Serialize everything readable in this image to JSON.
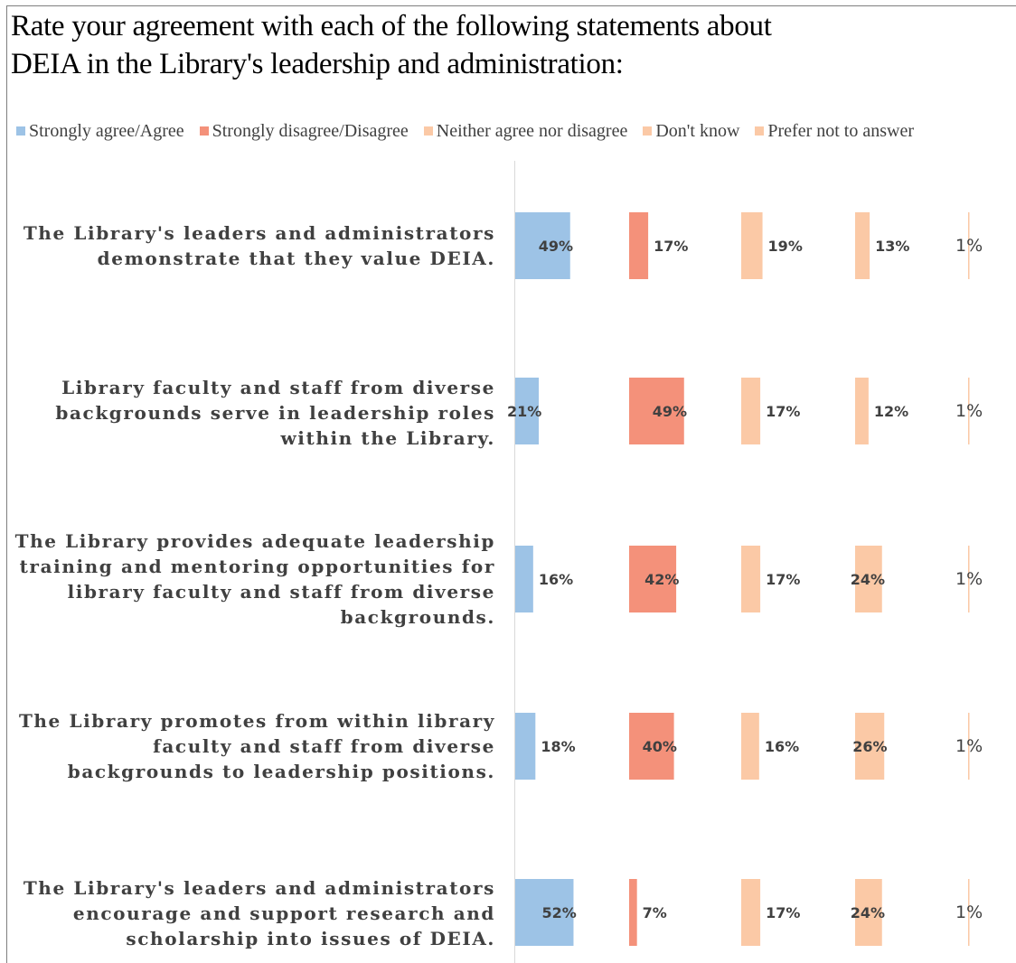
{
  "title": "Rate your agreement with each of the following statements about\nDEIA in the Library's leadership and administration:",
  "chart_data": {
    "type": "bar",
    "orientation": "horizontal",
    "title": "Rate your agreement with each of the following statements about DEIA in the Library's leadership and administration:",
    "legend_position": "top",
    "grid": false,
    "categories": [
      "The Library's leaders and administrators demonstrate that they value DEIA.",
      "Library faculty and staff from diverse backgrounds serve in leadership roles within the Library.",
      "The Library provides adequate leadership training and mentoring opportunities for library faculty and staff from diverse backgrounds.",
      "The Library promotes from within library faculty and staff from diverse backgrounds to leadership positions.",
      "The Library's leaders and administrators encourage and support research and scholarship into issues of DEIA."
    ],
    "series": [
      {
        "name": "Strongly agree/Agree",
        "color": "#9dc3e6",
        "values": [
          49,
          21,
          16,
          18,
          52
        ],
        "labels": [
          "49%",
          "21%",
          "16%",
          "18%",
          "52%"
        ]
      },
      {
        "name": "Strongly disagree/Disagree",
        "color": "#f4917a",
        "values": [
          17,
          49,
          42,
          40,
          7
        ],
        "labels": [
          "17%",
          "49%",
          "42%",
          "40%",
          "7%"
        ]
      },
      {
        "name": "Neither agree nor disagree",
        "color": "#fbc9a6",
        "values": [
          19,
          17,
          17,
          16,
          17
        ],
        "labels": [
          "19%",
          "17%",
          "17%",
          "16%",
          "17%"
        ]
      },
      {
        "name": "Don't know",
        "color": "#fbc9a6",
        "values": [
          13,
          12,
          24,
          26,
          24
        ],
        "labels": [
          "13%",
          "12%",
          "24%",
          "26%",
          "24%"
        ]
      },
      {
        "name": "Prefer not to answer",
        "color": "#fbc9a6",
        "values": [
          1,
          1,
          1,
          1,
          1
        ],
        "labels": [
          "1%",
          "1%",
          "1%",
          "1%",
          "1%"
        ]
      }
    ]
  }
}
